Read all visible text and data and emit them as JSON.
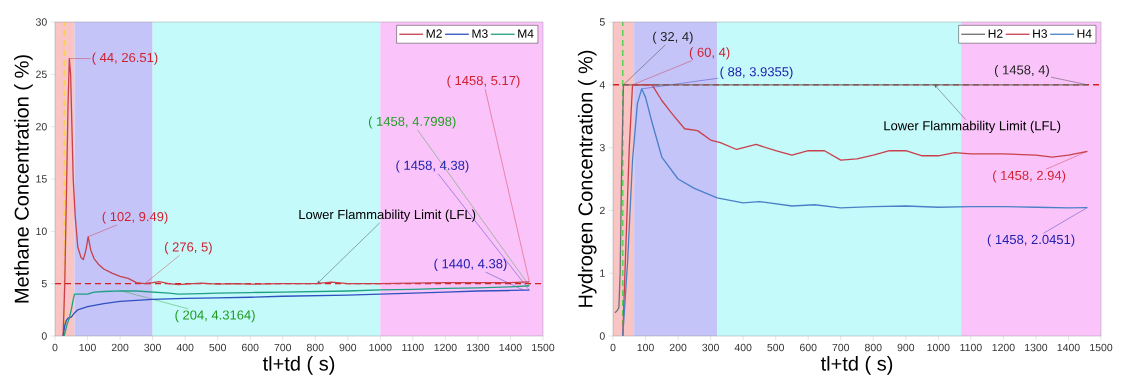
{
  "chart_data": [
    {
      "type": "line",
      "xlabel": "tl+td ( s)",
      "ylabel": "Methane Concentration ( %)",
      "xlim": [
        0,
        1500
      ],
      "ylim": [
        0,
        30
      ],
      "xticks": [
        0,
        100,
        200,
        300,
        400,
        500,
        600,
        700,
        800,
        900,
        1000,
        1100,
        1200,
        1300,
        1400,
        1500
      ],
      "yticks": [
        0,
        5,
        10,
        15,
        20,
        25,
        30
      ],
      "legend": "top right",
      "marker": "none",
      "series": [
        {
          "name": "M2",
          "color": "#c8404c",
          "x": [
            25,
            30,
            36,
            40,
            44,
            48,
            52,
            56,
            62,
            70,
            80,
            87,
            95,
            102,
            110,
            120,
            135,
            150,
            175,
            200,
            225,
            250,
            276,
            300,
            320,
            350,
            380,
            400,
            450,
            500,
            550,
            600,
            700,
            800,
            850,
            900,
            1000,
            1100,
            1200,
            1300,
            1400,
            1458
          ],
          "values": [
            0,
            5,
            15,
            22,
            26.51,
            25,
            20,
            15,
            11.5,
            8.5,
            7.5,
            7.3,
            8.2,
            9.49,
            8.2,
            7.4,
            6.8,
            6.4,
            6,
            5.7,
            5.5,
            5.1,
            5,
            5.1,
            5.2,
            5,
            4.9,
            4.95,
            5.05,
            4.95,
            5,
            4.95,
            5,
            5,
            5.15,
            5,
            5,
            5.05,
            5.1,
            5.1,
            5.1,
            5.17
          ]
        },
        {
          "name": "M3",
          "color": "#3050c0",
          "x": [
            25,
            30,
            35,
            40,
            50,
            60,
            70,
            80,
            100,
            150,
            200,
            250,
            300,
            400,
            500,
            600,
            700,
            800,
            900,
            1000,
            1100,
            1200,
            1300,
            1400,
            1440,
            1458
          ],
          "values": [
            0,
            1,
            1.5,
            1.7,
            1.8,
            2.2,
            2.5,
            2.6,
            2.8,
            3.1,
            3.3,
            3.4,
            3.5,
            3.6,
            3.65,
            3.7,
            3.8,
            3.85,
            3.9,
            4.0,
            4.1,
            4.2,
            4.3,
            4.35,
            4.38,
            4.38
          ]
        },
        {
          "name": "M4",
          "color": "#20a080",
          "x": [
            28,
            32,
            38,
            44,
            50,
            56,
            60,
            80,
            100,
            120,
            150,
            204,
            250,
            300,
            350,
            380,
            450,
            500,
            600,
            700,
            800,
            900,
            1000,
            1100,
            1200,
            1300,
            1400,
            1458
          ],
          "values": [
            0,
            0.5,
            1.2,
            1.7,
            2.5,
            3.5,
            4,
            4,
            4,
            4.2,
            4.25,
            4.3164,
            4.3,
            4.2,
            4.1,
            4,
            4.05,
            4.1,
            4.15,
            4.2,
            4.25,
            4.3,
            4.4,
            4.45,
            4.55,
            4.6,
            4.7,
            4.7998
          ]
        }
      ],
      "bands": [
        {
          "axis": "x",
          "from": 0,
          "to": 60,
          "color": "#f8c4c4"
        },
        {
          "axis": "x",
          "from": 60,
          "to": 300,
          "color": "#c4c4f8"
        },
        {
          "axis": "x",
          "from": 300,
          "to": 1000,
          "color": "#c4fafa"
        },
        {
          "axis": "x",
          "from": 1000,
          "to": 1500,
          "color": "#fac4fa"
        }
      ],
      "ref_lines": [
        {
          "axis": "y",
          "value": 5,
          "label": "Lower Flammability Limit (LFL)",
          "color": "#d42020",
          "line_style": "dashed"
        },
        {
          "axis": "x",
          "value": 28,
          "color": "#f8d040",
          "line_style": "dashed"
        }
      ],
      "annotations": [
        {
          "text": "( 44, 26.51)",
          "x": 44,
          "y": 26.51
        },
        {
          "text": "( 102, 9.49)",
          "x": 102,
          "y": 9.49
        },
        {
          "text": "( 276, 5)",
          "x": 276,
          "y": 5
        },
        {
          "text": "( 204, 4.3164)",
          "x": 204,
          "y": 4.3164
        },
        {
          "text": "( 1440, 4.38)",
          "x": 1440,
          "y": 4.38
        },
        {
          "text": "( 1458, 4.38)",
          "x": 1458,
          "y": 4.38
        },
        {
          "text": "( 1458, 4.7998)",
          "x": 1458,
          "y": 4.7998
        },
        {
          "text": "( 1458, 5.17)",
          "x": 1458,
          "y": 5.17
        }
      ]
    },
    {
      "type": "line",
      "xlabel": "tl+td ( s)",
      "ylabel": "Hydrogen Concentration ( %)",
      "xlim": [
        0,
        1500
      ],
      "ylim": [
        0,
        5
      ],
      "xticks": [
        0,
        100,
        200,
        300,
        400,
        500,
        600,
        700,
        800,
        900,
        1000,
        1100,
        1200,
        1300,
        1400,
        1500
      ],
      "yticks": [
        0,
        1,
        2,
        3,
        4,
        5
      ],
      "legend": "top right",
      "marker": "none",
      "series": [
        {
          "name": "H2",
          "color": "#707070",
          "x": [
            6,
            12,
            18,
            22,
            26,
            32,
            100,
            500,
            1000,
            1458
          ],
          "values": [
            0.37,
            0.4,
            0.45,
            1,
            2.5,
            4,
            4,
            4,
            4,
            4
          ]
        },
        {
          "name": "H3",
          "color": "#c8404c",
          "x": [
            30,
            40,
            50,
            60,
            90,
            120,
            150,
            180,
            220,
            260,
            300,
            330,
            380,
            440,
            500,
            550,
            600,
            650,
            700,
            750,
            800,
            850,
            900,
            950,
            1000,
            1050,
            1100,
            1200,
            1300,
            1350,
            1400,
            1458
          ],
          "values": [
            0,
            1.5,
            3,
            4,
            4,
            4,
            3.75,
            3.55,
            3.3,
            3.27,
            3.12,
            3.08,
            2.97,
            3.05,
            2.95,
            2.88,
            2.95,
            2.95,
            2.8,
            2.82,
            2.88,
            2.95,
            2.95,
            2.87,
            2.87,
            2.92,
            2.9,
            2.9,
            2.88,
            2.85,
            2.88,
            2.94
          ]
        },
        {
          "name": "H4",
          "color": "#4a80c8",
          "x": [
            30,
            45,
            60,
            75,
            88,
            100,
            120,
            150,
            200,
            250,
            320,
            400,
            450,
            550,
            620,
            700,
            800,
            900,
            1000,
            1100,
            1200,
            1300,
            1400,
            1458
          ],
          "values": [
            0,
            1.2,
            2.8,
            3.7,
            3.9355,
            3.8,
            3.4,
            2.85,
            2.5,
            2.35,
            2.2,
            2.12,
            2.14,
            2.07,
            2.09,
            2.04,
            2.06,
            2.07,
            2.05,
            2.06,
            2.06,
            2.05,
            2.04,
            2.0451
          ]
        }
      ],
      "bands": [
        {
          "axis": "x",
          "from": 0,
          "to": 65,
          "color": "#f8c4c4"
        },
        {
          "axis": "x",
          "from": 65,
          "to": 320,
          "color": "#c4c4f8"
        },
        {
          "axis": "x",
          "from": 320,
          "to": 1070,
          "color": "#c4fafa"
        },
        {
          "axis": "x",
          "from": 1070,
          "to": 1500,
          "color": "#fac4fa"
        }
      ],
      "ref_lines": [
        {
          "axis": "y",
          "value": 4,
          "label": "Lower Flammability Limit (LFL)",
          "color": "#d42020",
          "line_style": "dashed"
        },
        {
          "axis": "x",
          "value": 30,
          "color": "#50d050",
          "line_style": "dashed"
        }
      ],
      "annotations": [
        {
          "text": "( 32, 4)",
          "x": 32,
          "y": 4
        },
        {
          "text": "( 60, 4)",
          "x": 60,
          "y": 4
        },
        {
          "text": "( 88, 3.9355)",
          "x": 88,
          "y": 3.9355
        },
        {
          "text": "( 1458, 4)",
          "x": 1458,
          "y": 4
        },
        {
          "text": "( 1458, 2.94)",
          "x": 1458,
          "y": 2.94
        },
        {
          "text": "( 1458, 2.0451)",
          "x": 1458,
          "y": 2.0451
        }
      ]
    }
  ]
}
